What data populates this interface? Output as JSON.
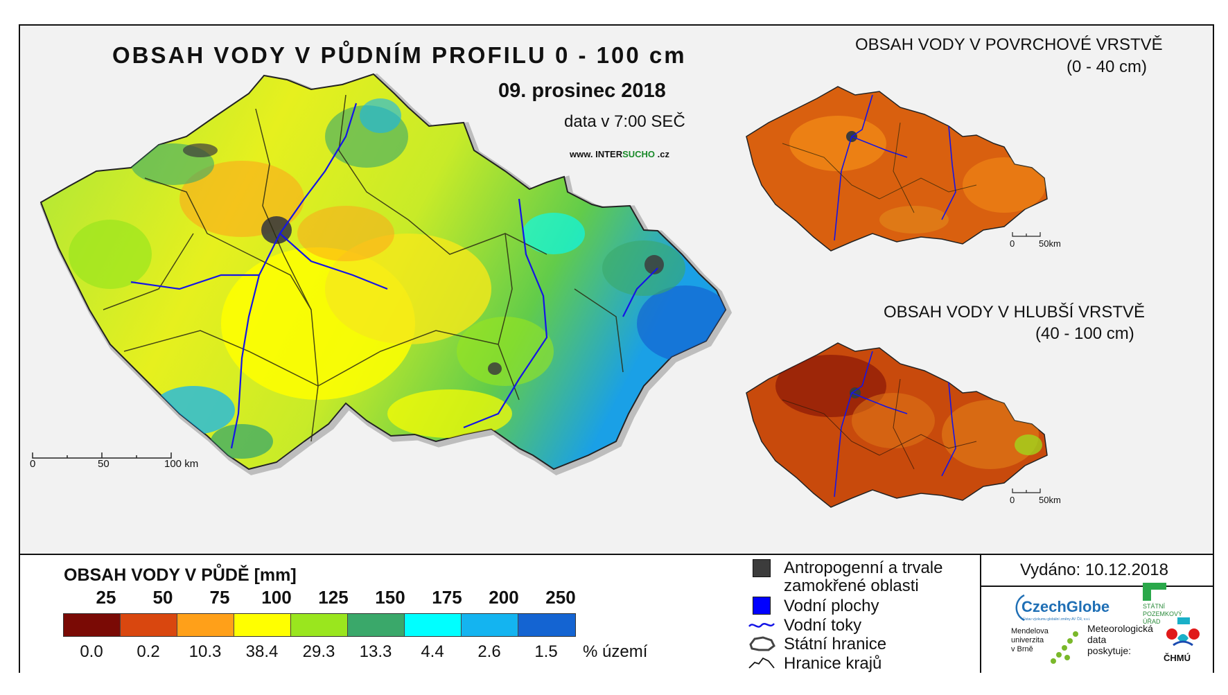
{
  "main_map": {
    "title": "OBSAH VODY V PŮDNÍM PROFILU 0 - 100 cm",
    "date": "09. prosinec 2018",
    "time": "data v 7:00 SEČ",
    "website_prefix": "www. INTER",
    "website_accent": "SUCHO",
    "website_suffix": " .cz",
    "scale": {
      "zero": "0",
      "mid": "50",
      "end": "100 km"
    }
  },
  "inset_top": {
    "title_line1": "OBSAH VODY V POVRCHOVÉ VRSTVĚ",
    "title_line2": "(0 - 40 cm)",
    "scale": {
      "zero": "0",
      "end": "50km"
    }
  },
  "inset_bottom": {
    "title_line1": "OBSAH VODY V HLUBŠÍ VRSTVĚ",
    "title_line2": "(40 - 100 cm)",
    "scale": {
      "zero": "0",
      "end": "50km"
    }
  },
  "legend": {
    "title": "OBSAH VODY V PŮDĚ [mm]",
    "thresholds": [
      "25",
      "50",
      "75",
      "100",
      "125",
      "150",
      "175",
      "200",
      "250"
    ],
    "classes": [
      {
        "color": "#7a0a05",
        "percent": "0.0"
      },
      {
        "color": "#d9470f",
        "percent": "0.2"
      },
      {
        "color": "#ffa019",
        "percent": "10.3"
      },
      {
        "color": "#ffff00",
        "percent": "38.4"
      },
      {
        "color": "#9ae61e",
        "percent": "29.3"
      },
      {
        "color": "#3aa86a",
        "percent": "13.3"
      },
      {
        "color": "#00ffff",
        "percent": "4.4"
      },
      {
        "color": "#14b4f0",
        "percent": "2.6"
      },
      {
        "color": "#1464d2",
        "percent": "1.5"
      }
    ],
    "percent_unit": "% území"
  },
  "symbols": {
    "anthropogenic_line1": "Antropogenní a trvale",
    "anthropogenic_line2": "zamokřené oblasti",
    "water_bodies": "Vodní plochy",
    "rivers": "Vodní toky",
    "state_border": "Státní hranice",
    "region_border": "Hranice krajů",
    "colors": {
      "anthropogenic": "#3c3c3c",
      "water": "#0000ff",
      "river": "#1414e6"
    }
  },
  "credits": {
    "issued": "Vydáno: 10.12.2018",
    "czechglobe": "CzechGlobe",
    "czechglobe_sub": "Ústav výzkumu globální změny AV ČR, v.v.i.",
    "spu_line1": "STÁTNÍ",
    "spu_line2": "POZEMKOVÝ",
    "spu_line3": "ÚŘAD",
    "mendel_line1": "Mendelova",
    "mendel_line2": "univerzita",
    "mendel_line3": "v Brně",
    "meteo_line1": "Meteorologická",
    "meteo_line2": "data",
    "meteo_line3": "poskytuje:",
    "chmu": "ČHMÚ"
  }
}
